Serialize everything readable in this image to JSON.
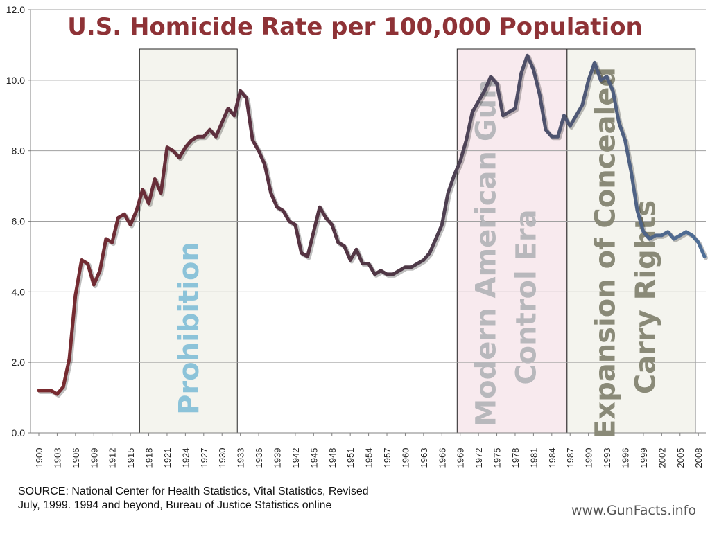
{
  "chart_data": {
    "type": "line",
    "title": "U.S. Homicide Rate per 100,000 Population",
    "xlabel": "",
    "ylabel": "",
    "ylim": [
      0,
      12
    ],
    "xlim": [
      1900,
      2009
    ],
    "yticks": [
      "0.0",
      "2.0",
      "4.0",
      "6.0",
      "8.0",
      "10.0",
      "12.0"
    ],
    "xticks": [
      "1900",
      "1903",
      "1906",
      "1909",
      "1912",
      "1915",
      "1918",
      "1921",
      "1924",
      "1927",
      "1930",
      "1933",
      "1936",
      "1939",
      "1942",
      "1945",
      "1948",
      "1951",
      "1954",
      "1957",
      "1960",
      "1963",
      "1966",
      "1969",
      "1972",
      "1975",
      "1978",
      "1981",
      "1984",
      "1987",
      "1990",
      "1993",
      "1996",
      "1999",
      "2002",
      "2005",
      "2008"
    ],
    "grid": true,
    "series": [
      {
        "name": "Homicide rate",
        "x": [
          1900,
          1901,
          1902,
          1903,
          1904,
          1905,
          1906,
          1907,
          1908,
          1909,
          1910,
          1911,
          1912,
          1913,
          1914,
          1915,
          1916,
          1917,
          1918,
          1919,
          1920,
          1921,
          1922,
          1923,
          1924,
          1925,
          1926,
          1927,
          1928,
          1929,
          1930,
          1931,
          1932,
          1933,
          1934,
          1935,
          1936,
          1937,
          1938,
          1939,
          1940,
          1941,
          1942,
          1943,
          1944,
          1945,
          1946,
          1947,
          1948,
          1949,
          1950,
          1951,
          1952,
          1953,
          1954,
          1955,
          1956,
          1957,
          1958,
          1959,
          1960,
          1961,
          1962,
          1963,
          1964,
          1965,
          1966,
          1967,
          1968,
          1969,
          1970,
          1971,
          1972,
          1973,
          1974,
          1975,
          1976,
          1977,
          1978,
          1979,
          1980,
          1981,
          1982,
          1983,
          1984,
          1985,
          1986,
          1987,
          1988,
          1989,
          1990,
          1991,
          1992,
          1993,
          1994,
          1995,
          1996,
          1997,
          1998,
          1999,
          2000,
          2001,
          2002,
          2003,
          2004,
          2005,
          2006,
          2007,
          2008,
          2009
        ],
        "values": [
          1.2,
          1.2,
          1.2,
          1.1,
          1.3,
          2.1,
          3.9,
          4.9,
          4.8,
          4.2,
          4.6,
          5.5,
          5.4,
          6.1,
          6.2,
          5.9,
          6.3,
          6.9,
          6.5,
          7.2,
          6.8,
          8.1,
          8.0,
          7.8,
          8.1,
          8.3,
          8.4,
          8.4,
          8.6,
          8.4,
          8.8,
          9.2,
          9.0,
          9.7,
          9.5,
          8.3,
          8.0,
          7.6,
          6.8,
          6.4,
          6.3,
          6.0,
          5.9,
          5.1,
          5.0,
          5.7,
          6.4,
          6.1,
          5.9,
          5.4,
          5.3,
          4.9,
          5.2,
          4.8,
          4.8,
          4.5,
          4.6,
          4.5,
          4.5,
          4.6,
          4.7,
          4.7,
          4.8,
          4.9,
          5.1,
          5.5,
          5.9,
          6.8,
          7.3,
          7.7,
          8.3,
          9.1,
          9.4,
          9.7,
          10.1,
          9.9,
          9.0,
          9.1,
          9.2,
          10.2,
          10.7,
          10.3,
          9.6,
          8.6,
          8.4,
          8.4,
          9.0,
          8.7,
          9.0,
          9.3,
          10.0,
          10.5,
          10.0,
          10.1,
          9.7,
          8.8,
          8.3,
          7.4,
          6.3,
          5.7,
          5.5,
          5.6,
          5.6,
          5.7,
          5.5,
          5.6,
          5.7,
          5.6,
          5.4,
          5.0
        ]
      }
    ],
    "annotations": [
      {
        "label": "Prohibition",
        "x_start": 1916.5,
        "x_end": 1932.5,
        "fill": "#f4f4ee",
        "text_color": "#8cc3d9"
      },
      {
        "label": "Modern American Gun Control Era",
        "line1": "Modern American Gun",
        "line2": "Control Era",
        "x_start": 1968.5,
        "x_end": 1986.5,
        "fill": "#f8eaee",
        "text_color": "#b8b8bc"
      },
      {
        "label": "Expansion of Concealed Carry Rights",
        "line1": "Expansion of Concealed",
        "line2": "Carry Rights",
        "x_start": 1986.5,
        "x_end": 2007.5,
        "fill": "#f4f4ee",
        "text_color": "#8a8a78"
      }
    ],
    "colors": {
      "title": "#8e3236",
      "line_start": "#7a2a2e",
      "line_mid": "#4e3846",
      "line_end": "#4e6f98",
      "grid": "#a0a0a0",
      "axis": "#808080"
    }
  },
  "footer": {
    "source_line1": "SOURCE: National Center for Health Statistics, Vital Statistics, Revised",
    "source_line2": "July, 1999. 1994 and beyond, Bureau of Justice Statistics online",
    "watermark": "www.GunFacts.info"
  }
}
